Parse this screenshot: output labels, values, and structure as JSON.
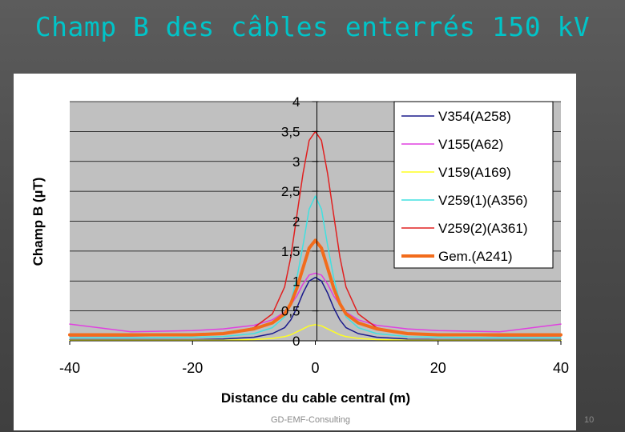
{
  "slide": {
    "title": "Champ B des câbles enterrés 150 kV",
    "footer": "GD-EMF-Consulting",
    "page_number": "10"
  },
  "chart_data": {
    "type": "line",
    "xlabel": "Distance du cable central (m)",
    "ylabel": "Champ B (µT)",
    "xlim": [
      -40,
      40
    ],
    "ylim": [
      0,
      4
    ],
    "x_ticks": [
      "-40",
      "-20",
      "0",
      "20",
      "40"
    ],
    "y_ticks": [
      "0",
      "0,5",
      "1",
      "1,5",
      "2",
      "2,5",
      "3",
      "3,5",
      "4"
    ],
    "grid": true,
    "legend_position": "top-right",
    "background_color": "#c0c0c0",
    "series": [
      {
        "name": "V354(A258)",
        "color": "#1a1a8c",
        "width": 1.5,
        "x": [
          -40,
          -30,
          -20,
          -15,
          -10,
          -7,
          -5,
          -4,
          -3,
          -2,
          -1,
          0,
          1,
          2,
          3,
          4,
          5,
          7,
          10,
          15,
          20,
          30,
          40
        ],
        "y": [
          0.02,
          0.02,
          0.02,
          0.03,
          0.06,
          0.12,
          0.22,
          0.35,
          0.55,
          0.8,
          1.0,
          1.06,
          1.0,
          0.8,
          0.55,
          0.35,
          0.22,
          0.12,
          0.06,
          0.03,
          0.02,
          0.02,
          0.02
        ]
      },
      {
        "name": "V155(A62)",
        "color": "#e040e0",
        "width": 1.5,
        "x": [
          -40,
          -30,
          -20,
          -15,
          -10,
          -7,
          -5,
          -4,
          -3,
          -2,
          -1,
          0,
          1,
          2,
          3,
          4,
          5,
          7,
          10,
          15,
          20,
          30,
          40
        ],
        "y": [
          0.28,
          0.15,
          0.17,
          0.2,
          0.26,
          0.35,
          0.48,
          0.6,
          0.75,
          0.95,
          1.1,
          1.13,
          1.1,
          0.95,
          0.75,
          0.6,
          0.48,
          0.35,
          0.26,
          0.2,
          0.17,
          0.15,
          0.28
        ]
      },
      {
        "name": "V159(A169)",
        "color": "#ffff20",
        "width": 1.5,
        "x": [
          -40,
          -30,
          -20,
          -15,
          -10,
          -7,
          -5,
          -4,
          -3,
          -2,
          -1,
          0,
          1,
          2,
          3,
          4,
          5,
          7,
          10,
          15,
          20,
          30,
          40
        ],
        "y": [
          0.01,
          0.01,
          0.01,
          0.01,
          0.02,
          0.04,
          0.07,
          0.1,
          0.15,
          0.2,
          0.25,
          0.27,
          0.25,
          0.2,
          0.15,
          0.1,
          0.07,
          0.04,
          0.02,
          0.01,
          0.01,
          0.01,
          0.01
        ]
      },
      {
        "name": "V259(1)(A356)",
        "color": "#40e0e0",
        "width": 1.5,
        "x": [
          -40,
          -30,
          -20,
          -15,
          -10,
          -7,
          -5,
          -4,
          -3,
          -2,
          -1,
          0,
          1,
          2,
          3,
          4,
          5,
          7,
          10,
          15,
          20,
          30,
          40
        ],
        "y": [
          0.05,
          0.05,
          0.06,
          0.07,
          0.12,
          0.22,
          0.4,
          0.65,
          1.05,
          1.6,
          2.2,
          2.42,
          2.2,
          1.6,
          1.05,
          0.65,
          0.4,
          0.22,
          0.12,
          0.07,
          0.06,
          0.05,
          0.05
        ]
      },
      {
        "name": "V259(2)(A361)",
        "color": "#e02020",
        "width": 1.5,
        "x": [
          -40,
          -30,
          -20,
          -15,
          -10,
          -7,
          -5,
          -4,
          -3,
          -2,
          -1,
          0,
          1,
          2,
          3,
          4,
          5,
          7,
          10,
          15,
          20,
          30,
          40
        ],
        "y": [
          0.08,
          0.08,
          0.09,
          0.11,
          0.22,
          0.45,
          0.9,
          1.4,
          2.1,
          2.8,
          3.35,
          3.5,
          3.35,
          2.8,
          2.1,
          1.4,
          0.9,
          0.45,
          0.22,
          0.11,
          0.09,
          0.08,
          0.08
        ]
      },
      {
        "name": "Gem.(A241)",
        "color": "#f26c1c",
        "width": 4,
        "x": [
          -40,
          -30,
          -20,
          -15,
          -10,
          -7,
          -5,
          -4,
          -3,
          -2,
          -1,
          0,
          1,
          2,
          3,
          4,
          5,
          7,
          10,
          15,
          20,
          30,
          40
        ],
        "y": [
          0.1,
          0.1,
          0.1,
          0.12,
          0.2,
          0.3,
          0.45,
          0.62,
          0.88,
          1.22,
          1.55,
          1.68,
          1.55,
          1.22,
          0.88,
          0.62,
          0.45,
          0.3,
          0.2,
          0.12,
          0.1,
          0.1,
          0.1
        ]
      }
    ]
  }
}
